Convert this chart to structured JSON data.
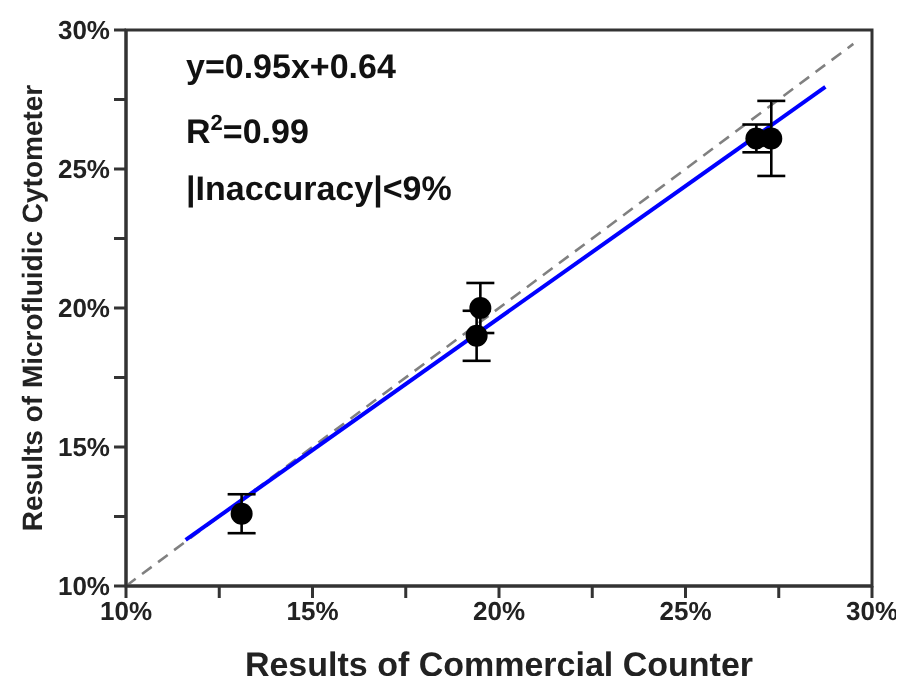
{
  "chart_data": {
    "type": "scatter",
    "xlabel": "Results of Commercial Counter",
    "ylabel": "Results of Microfluidic Cytometer",
    "annotations": [
      "y=0.95x+0.64",
      "R$^{2}$=0.99",
      "|Inaccuracy|<9%"
    ],
    "xlim": [
      10,
      30
    ],
    "ylim": [
      10,
      30
    ],
    "xticks": [
      {
        "value": 10,
        "label": "10%"
      },
      {
        "value": 12.5,
        "label": null
      },
      {
        "value": 15,
        "label": "15%"
      },
      {
        "value": 17.5,
        "label": null
      },
      {
        "value": 20,
        "label": "20%"
      },
      {
        "value": 22.5,
        "label": null
      },
      {
        "value": 25,
        "label": "25%"
      },
      {
        "value": 27.5,
        "label": null
      },
      {
        "value": 30,
        "label": "30%"
      }
    ],
    "yticks": [
      {
        "value": 10,
        "label": "10%"
      },
      {
        "value": 12.5,
        "label": null
      },
      {
        "value": 15,
        "label": "15%"
      },
      {
        "value": 17.5,
        "label": null
      },
      {
        "value": 20,
        "label": "20%"
      },
      {
        "value": 22.5,
        "label": null
      },
      {
        "value": 25,
        "label": "25%"
      },
      {
        "value": 27.5,
        "label": null
      },
      {
        "value": 30,
        "label": "30%"
      }
    ],
    "series": [
      {
        "type": "line",
        "color": "#808080",
        "line_style": "dashed",
        "marker": "none",
        "x": [
          10,
          29.5
        ],
        "values": [
          10,
          29.5
        ]
      },
      {
        "type": "line",
        "color": "#0000ff",
        "line_style": "solid",
        "marker": "none",
        "x": [
          11.6,
          28.75
        ],
        "values": [
          11.66,
          27.95
        ]
      },
      {
        "color": "#000000",
        "marker": "circle",
        "x": [
          13.1,
          19.4,
          19.5,
          26.9,
          27.3
        ],
        "values": [
          12.6,
          19.0,
          20.0,
          26.1,
          26.1
        ],
        "errors": [
          0.7,
          0.9,
          0.9,
          0.5,
          1.35
        ]
      }
    ]
  }
}
